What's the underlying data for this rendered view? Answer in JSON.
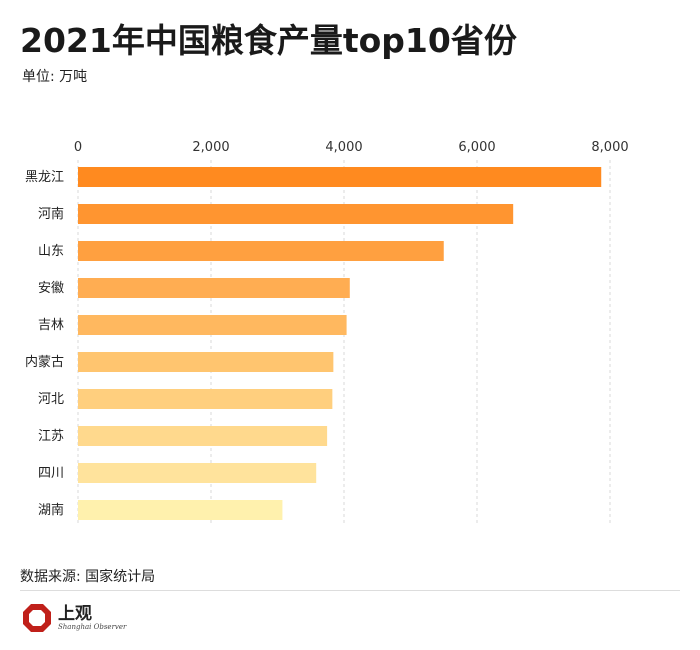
{
  "header": {
    "title": "2021年中国粮食产量top10省份",
    "subtitle": "单位: 万吨"
  },
  "footer": {
    "source": "数据来源: 国家统计局",
    "logo_cn": "上观",
    "logo_en": "Shanghai Observer"
  },
  "chart_data": {
    "type": "bar",
    "orientation": "horizontal",
    "categories": [
      "黑龙江",
      "河南",
      "山东",
      "安徽",
      "吉林",
      "内蒙古",
      "河北",
      "江苏",
      "四川",
      "湖南"
    ],
    "values": [
      7868,
      6544,
      5500,
      4087,
      4039,
      3840,
      3825,
      3746,
      3582,
      3074
    ],
    "x_ticks": [
      0,
      2000,
      4000,
      6000,
      8000
    ],
    "x_tick_labels": [
      "0",
      "2,000",
      "4,000",
      "6,000",
      "8,000"
    ],
    "xlim": [
      0,
      8000
    ],
    "grid": "vertical dashed",
    "colors": [
      "#ff8a1f",
      "#ff9530",
      "#ffa040",
      "#ffad52",
      "#ffb85f",
      "#ffc56f",
      "#ffcf7e",
      "#ffd98d",
      "#ffe39c",
      "#fff1ad"
    ]
  }
}
